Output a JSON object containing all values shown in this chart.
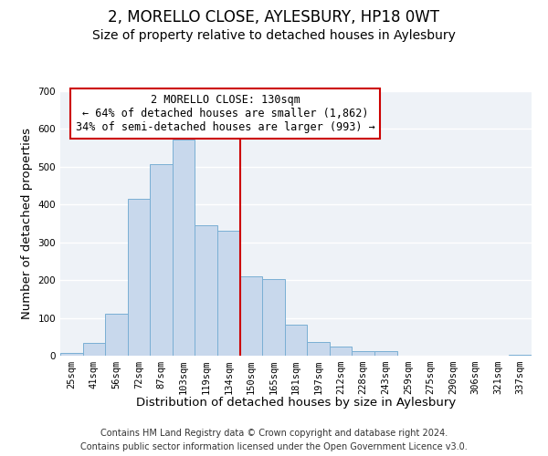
{
  "title": "2, MORELLO CLOSE, AYLESBURY, HP18 0WT",
  "subtitle": "Size of property relative to detached houses in Aylesbury",
  "xlabel": "Distribution of detached houses by size in Aylesbury",
  "ylabel": "Number of detached properties",
  "footnote1": "Contains HM Land Registry data © Crown copyright and database right 2024.",
  "footnote2": "Contains public sector information licensed under the Open Government Licence v3.0.",
  "bar_labels": [
    "25sqm",
    "41sqm",
    "56sqm",
    "72sqm",
    "87sqm",
    "103sqm",
    "119sqm",
    "134sqm",
    "150sqm",
    "165sqm",
    "181sqm",
    "197sqm",
    "212sqm",
    "228sqm",
    "243sqm",
    "259sqm",
    "275sqm",
    "290sqm",
    "306sqm",
    "321sqm",
    "337sqm"
  ],
  "bar_values": [
    8,
    35,
    112,
    415,
    507,
    573,
    345,
    330,
    210,
    203,
    83,
    37,
    25,
    12,
    13,
    0,
    0,
    0,
    0,
    0,
    2
  ],
  "bar_color": "#c8d8ec",
  "bar_edge_color": "#7aafd4",
  "vline_color": "#cc0000",
  "vline_x_index": 7.5,
  "ylim": [
    0,
    700
  ],
  "yticks": [
    0,
    100,
    200,
    300,
    400,
    500,
    600,
    700
  ],
  "annotation_title": "2 MORELLO CLOSE: 130sqm",
  "annotation_line1": "← 64% of detached houses are smaller (1,862)",
  "annotation_line2": "34% of semi-detached houses are larger (993) →",
  "annotation_box_color": "#cc0000",
  "bg_color": "#eef2f7",
  "title_fontsize": 12,
  "subtitle_fontsize": 10,
  "axis_label_fontsize": 9.5,
  "tick_fontsize": 7.5,
  "annotation_fontsize": 8.5,
  "footnote_fontsize": 7
}
